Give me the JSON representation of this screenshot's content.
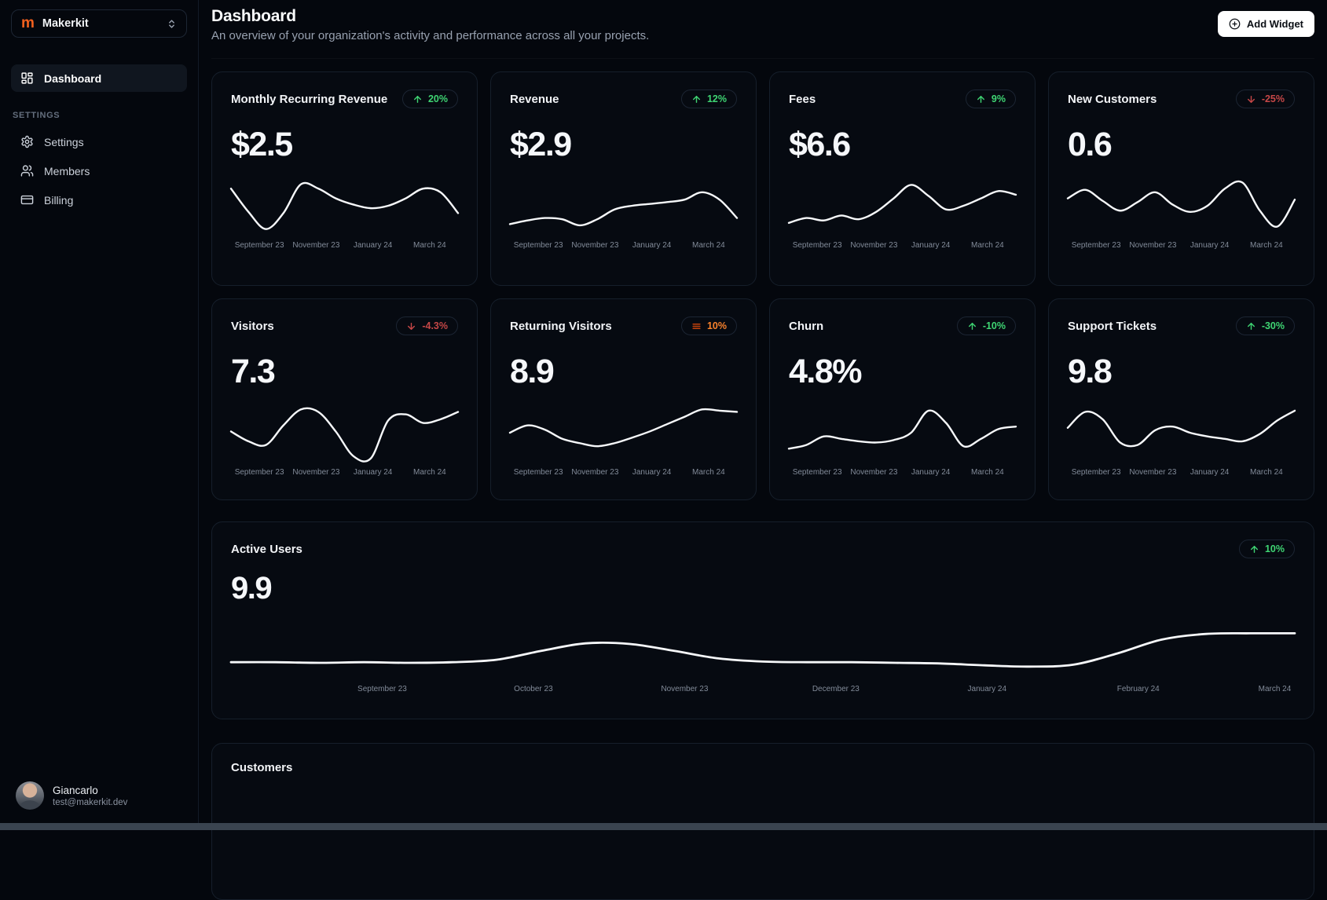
{
  "workspace": {
    "name": "Makerkit",
    "logo_letter": "m",
    "logo_color": "#f4611e"
  },
  "sidebar": {
    "nav": [
      {
        "label": "Dashboard",
        "icon": "dashboard-grid",
        "active": true
      }
    ],
    "section_label": "SETTINGS",
    "settings_nav": [
      {
        "label": "Settings",
        "icon": "gear"
      },
      {
        "label": "Members",
        "icon": "members"
      },
      {
        "label": "Billing",
        "icon": "credit-card"
      }
    ],
    "user": {
      "name": "Giancarlo",
      "email": "test@makerkit.dev"
    }
  },
  "header": {
    "title": "Dashboard",
    "subtitle": "An overview of your organization's activity and performance across all your projects.",
    "add_widget_label": "Add Widget"
  },
  "colors": {
    "positive": "#3fd573",
    "negative": "#c64747",
    "warning": "#f9822c",
    "chart_line": "#f6f8fa",
    "background": "#04070d",
    "card_border": "#161f2b"
  },
  "x_labels_small": [
    "September 23",
    "November 23",
    "January 24",
    "March 24"
  ],
  "cards": [
    {
      "title": "Monthly Recurring Revenue",
      "value": "$2.5",
      "badge": {
        "icon": "arrow-up",
        "tone": "green",
        "text": "20%"
      },
      "spark": [
        78,
        40,
        12,
        38,
        85,
        78,
        62,
        52,
        46,
        50,
        62,
        78,
        72,
        38
      ]
    },
    {
      "title": "Revenue",
      "value": "$2.9",
      "badge": {
        "icon": "arrow-up",
        "tone": "green",
        "text": "12%"
      },
      "spark": [
        20,
        26,
        30,
        28,
        18,
        28,
        44,
        50,
        53,
        56,
        60,
        72,
        60,
        30
      ]
    },
    {
      "title": "Fees",
      "value": "$6.6",
      "badge": {
        "icon": "arrow-up",
        "tone": "green",
        "text": "9%"
      },
      "spark": [
        22,
        30,
        26,
        34,
        28,
        40,
        62,
        84,
        66,
        44,
        50,
        62,
        74,
        68
      ]
    },
    {
      "title": "New Customers",
      "value": "0.6",
      "badge": {
        "icon": "arrow-down",
        "tone": "red",
        "text": "-25%"
      },
      "spark": [
        62,
        76,
        58,
        42,
        56,
        72,
        52,
        40,
        50,
        78,
        88,
        42,
        16,
        60
      ]
    },
    {
      "title": "Visitors",
      "value": "7.3",
      "badge": {
        "icon": "arrow-down",
        "tone": "red",
        "text": "-4.3%"
      },
      "spark": [
        52,
        36,
        30,
        62,
        88,
        84,
        52,
        12,
        8,
        70,
        80,
        66,
        72,
        84
      ]
    },
    {
      "title": "Returning Visitors",
      "value": "8.9",
      "badge": {
        "icon": "flat-lines",
        "tone": "orange",
        "text": "10%"
      },
      "spark": [
        50,
        62,
        55,
        40,
        33,
        28,
        33,
        42,
        52,
        64,
        76,
        88,
        86,
        84
      ]
    },
    {
      "title": "Churn",
      "value": "4.8%",
      "badge": {
        "icon": "arrow-up",
        "tone": "green",
        "text": "-10%"
      },
      "spark": [
        24,
        30,
        44,
        40,
        36,
        34,
        38,
        50,
        86,
        66,
        28,
        40,
        56,
        60
      ]
    },
    {
      "title": "Support Tickets",
      "value": "9.8",
      "badge": {
        "icon": "arrow-up",
        "tone": "green",
        "text": "-30%"
      },
      "spark": [
        58,
        84,
        72,
        34,
        30,
        54,
        60,
        50,
        44,
        40,
        36,
        48,
        70,
        86
      ]
    }
  ],
  "active_users": {
    "title": "Active Users",
    "value": "9.9",
    "badge": {
      "icon": "arrow-up",
      "tone": "green",
      "text": "10%"
    },
    "x_labels": [
      "September 23",
      "October 23",
      "November 23",
      "December 23",
      "January 24",
      "February 24",
      "March 24"
    ],
    "spark": [
      26,
      26,
      25,
      26,
      25,
      26,
      30,
      44,
      56,
      55,
      44,
      32,
      27,
      26,
      26,
      25,
      24,
      21,
      19,
      22,
      40,
      62,
      71,
      72,
      72
    ]
  },
  "customers": {
    "title": "Customers"
  }
}
